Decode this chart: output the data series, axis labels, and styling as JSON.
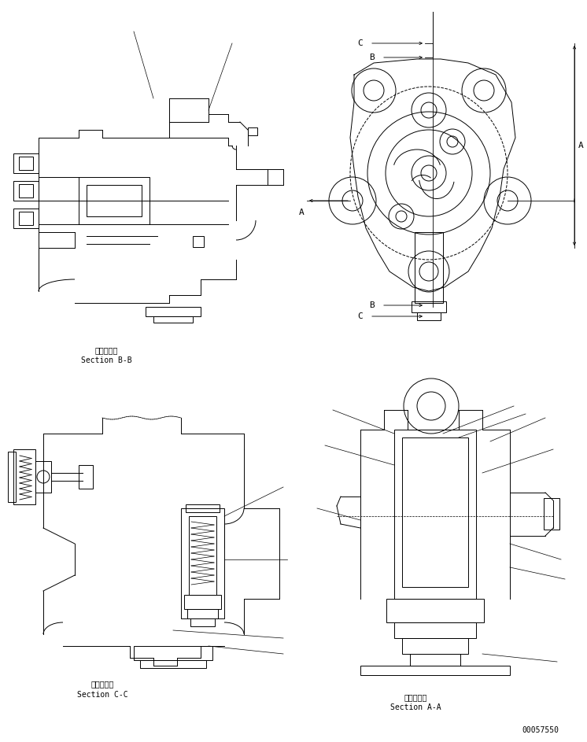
{
  "background_color": "#ffffff",
  "line_color": "#000000",
  "line_width": 0.7,
  "fig_width": 7.46,
  "fig_height": 9.43,
  "dpi": 100,
  "labels": {
    "section_bb_jp": "断面Ｂ－Ｂ",
    "section_bb_en": "Section B-B",
    "section_cc_jp": "断面Ｃ－Ｃ",
    "section_cc_en": "Section C-C",
    "section_aa_jp": "断面Ａ－Ａ",
    "section_aa_en": "Section A-A",
    "part_number": "00057550"
  },
  "font_size_label": 7,
  "font_size_partnum": 7,
  "font_size_annot": 8
}
